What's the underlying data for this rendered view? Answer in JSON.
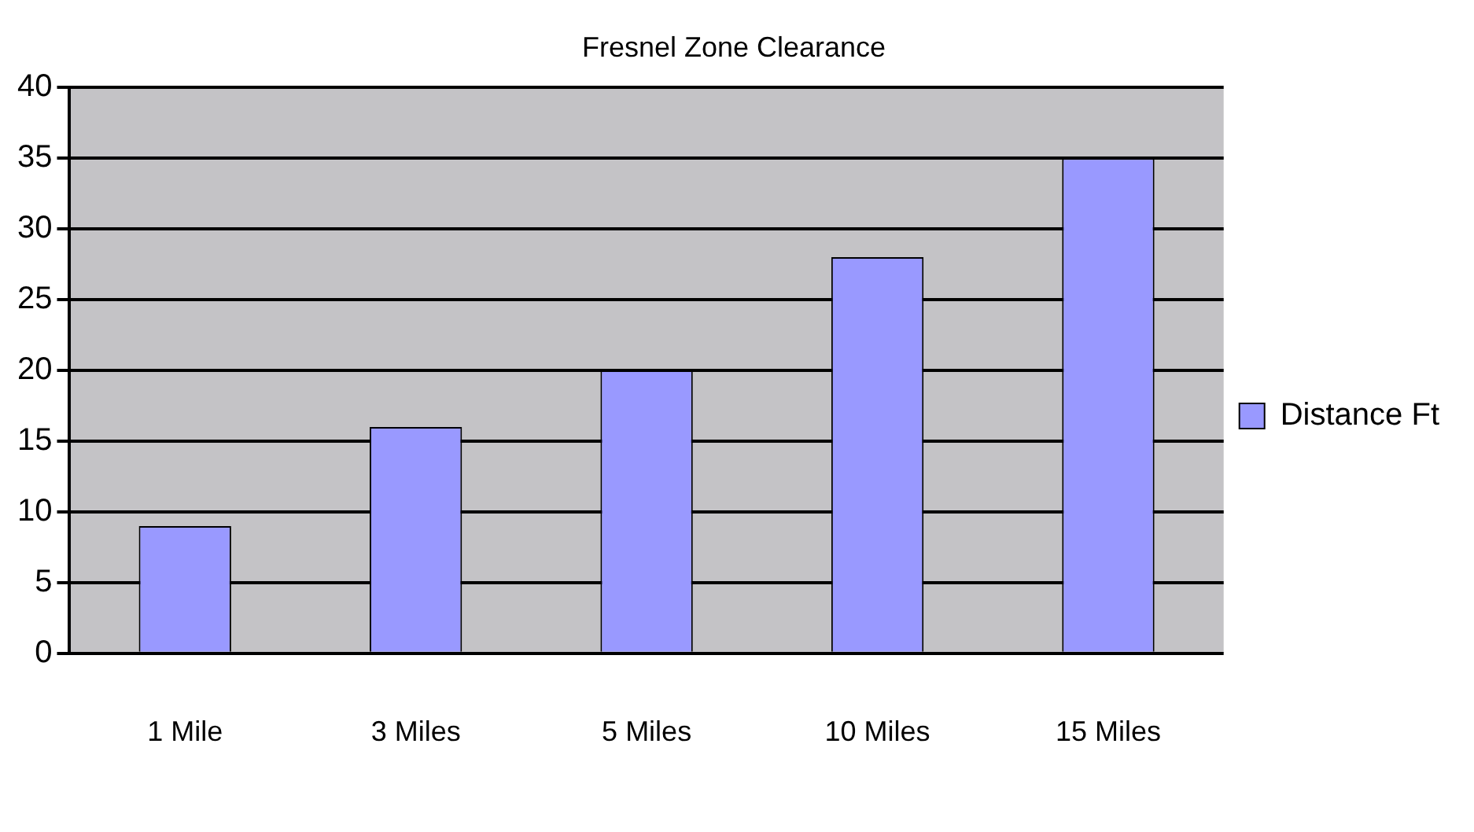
{
  "chart_data": {
    "type": "bar",
    "title": "Fresnel Zone Clearance",
    "categories": [
      "1 Mile",
      "3 Miles",
      "5 Miles",
      "10 Miles",
      "15 Miles"
    ],
    "series": [
      {
        "name": "Distance Ft",
        "color": "#9999ff",
        "values": [
          9,
          16,
          20,
          28,
          35
        ]
      }
    ],
    "ylim": [
      0,
      40
    ],
    "yticks": [
      0,
      5,
      10,
      15,
      20,
      25,
      30,
      35,
      40
    ],
    "grid": "y",
    "legend": "right"
  }
}
